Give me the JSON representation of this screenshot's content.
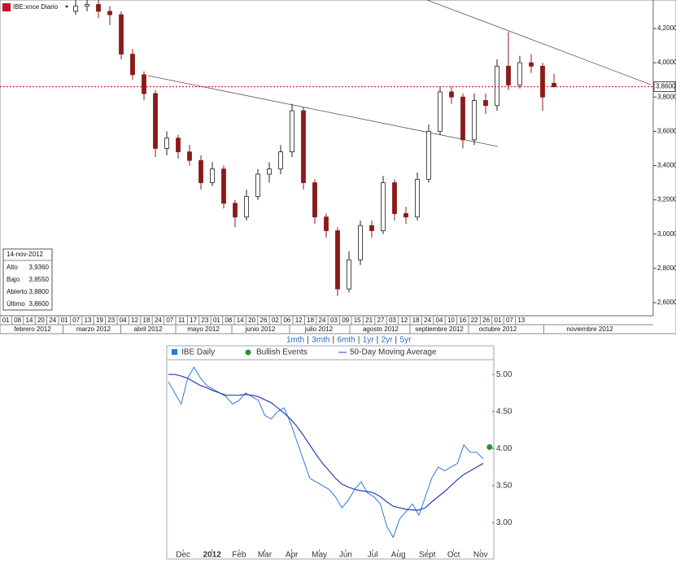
{
  "chart_data": [
    {
      "type": "candlestick",
      "title": "IBE:xnce Diario",
      "ylim": [
        2.524,
        4.366
      ],
      "yticks": [
        {
          "value": 4.2,
          "label": "4,2000"
        },
        {
          "value": 4.0,
          "label": "4,0000"
        },
        {
          "value": 3.8,
          "label": "3,8000"
        },
        {
          "value": 3.6,
          "label": "3,6000"
        },
        {
          "value": 3.4,
          "label": "3,4000"
        },
        {
          "value": 3.2,
          "label": "3,2000"
        },
        {
          "value": 3.0,
          "label": "3,0000"
        },
        {
          "value": 2.8,
          "label": "2,8000"
        },
        {
          "value": 2.6,
          "label": "2,6000"
        }
      ],
      "candles": [
        [
          4.3,
          4.37,
          4.28,
          4.33
        ],
        [
          4.33,
          4.38,
          4.3,
          4.34
        ],
        [
          4.34,
          4.38,
          4.26,
          4.3
        ],
        [
          4.3,
          4.33,
          4.22,
          4.28
        ],
        [
          4.28,
          4.3,
          4.02,
          4.05
        ],
        [
          4.05,
          4.08,
          3.9,
          3.93
        ],
        [
          3.93,
          3.95,
          3.78,
          3.82
        ],
        [
          3.82,
          3.84,
          3.45,
          3.5
        ],
        [
          3.5,
          3.6,
          3.46,
          3.56
        ],
        [
          3.56,
          3.58,
          3.44,
          3.48
        ],
        [
          3.48,
          3.52,
          3.4,
          3.43
        ],
        [
          3.43,
          3.46,
          3.26,
          3.3
        ],
        [
          3.3,
          3.42,
          3.28,
          3.38
        ],
        [
          3.38,
          3.4,
          3.15,
          3.18
        ],
        [
          3.18,
          3.2,
          3.04,
          3.1
        ],
        [
          3.1,
          3.26,
          3.08,
          3.22
        ],
        [
          3.22,
          3.38,
          3.2,
          3.35
        ],
        [
          3.35,
          3.42,
          3.3,
          3.38
        ],
        [
          3.38,
          3.52,
          3.35,
          3.48
        ],
        [
          3.48,
          3.76,
          3.45,
          3.72
        ],
        [
          3.72,
          3.74,
          3.26,
          3.3
        ],
        [
          3.3,
          3.32,
          3.06,
          3.1
        ],
        [
          3.1,
          3.12,
          2.98,
          3.02
        ],
        [
          3.02,
          3.04,
          2.64,
          2.68
        ],
        [
          2.68,
          2.9,
          2.66,
          2.85
        ],
        [
          2.85,
          3.08,
          2.82,
          3.05
        ],
        [
          3.05,
          3.08,
          2.98,
          3.02
        ],
        [
          3.02,
          3.34,
          3.0,
          3.3
        ],
        [
          3.3,
          3.32,
          3.08,
          3.12
        ],
        [
          3.12,
          3.16,
          3.06,
          3.1
        ],
        [
          3.1,
          3.36,
          3.08,
          3.32
        ],
        [
          3.32,
          3.64,
          3.3,
          3.6
        ],
        [
          3.6,
          3.86,
          3.58,
          3.83
        ],
        [
          3.83,
          3.86,
          3.76,
          3.8
        ],
        [
          3.8,
          3.82,
          3.5,
          3.55
        ],
        [
          3.55,
          3.82,
          3.52,
          3.78
        ],
        [
          3.78,
          3.82,
          3.7,
          3.75
        ],
        [
          3.75,
          4.02,
          3.72,
          3.98
        ],
        [
          3.98,
          4.18,
          3.84,
          3.87
        ],
        [
          3.87,
          4.04,
          3.85,
          4.0
        ],
        [
          4.0,
          4.05,
          3.94,
          3.98
        ],
        [
          3.98,
          4.0,
          3.72,
          3.8
        ],
        [
          3.88,
          3.936,
          3.855,
          3.86
        ]
      ],
      "up_color": "#1f1f1f",
      "down_color": "#8b1a1a",
      "last_price": {
        "value": 3.86,
        "label": "3,8600"
      },
      "info": {
        "date": "14-nov-2012",
        "rows": [
          [
            "Alto",
            "3,9360"
          ],
          [
            "Bajo",
            "3,8550"
          ],
          [
            "Abierto",
            "3,8800"
          ],
          [
            "Último",
            "3,8600"
          ]
        ]
      },
      "day_labels": [
        "01",
        "08",
        "14",
        "20",
        "24",
        "01",
        "07",
        "13",
        "19",
        "23",
        "04",
        "12",
        "18",
        "24",
        "07",
        "11",
        "17",
        "23",
        "01",
        "08",
        "14",
        "20",
        "26",
        "02",
        "06",
        "12",
        "18",
        "24",
        "03",
        "09",
        "15",
        "21",
        "27",
        "03",
        "12",
        "18",
        "24",
        "04",
        "10",
        "16",
        "22",
        "26",
        "01",
        "07",
        "13"
      ],
      "month_labels": [
        "febrero 2012",
        "marzo 2012",
        "abril 2012",
        "mayo 2012",
        "junio 2012",
        "julio 2012",
        "agosto 2012",
        "septiembre 2012",
        "octubre 2012",
        "noviembre 2012"
      ]
    },
    {
      "type": "line",
      "range_links": [
        "1mth",
        "3mth",
        "6mth",
        "1yr",
        "2yr",
        "5yr"
      ],
      "x": [
        0,
        1,
        2,
        3,
        4,
        5,
        6,
        7,
        8,
        9,
        10,
        11,
        12,
        13,
        14,
        15,
        16,
        17,
        18,
        19,
        20,
        21,
        22,
        23,
        24,
        25,
        26,
        27,
        28,
        29,
        30,
        31,
        32,
        33,
        34,
        35,
        36,
        37,
        38,
        39,
        40,
        41,
        42,
        43,
        44,
        45,
        46,
        47,
        48,
        49
      ],
      "xlim": [
        0,
        50.4
      ],
      "xticks": [
        {
          "value": 2.3,
          "label": "Dec"
        },
        {
          "value": 6.8,
          "label": "2012"
        },
        {
          "value": 11,
          "label": "Feb"
        },
        {
          "value": 15,
          "label": "Mar"
        },
        {
          "value": 19.2,
          "label": "Apr"
        },
        {
          "value": 23.5,
          "label": "May"
        },
        {
          "value": 27.6,
          "label": "Jun"
        },
        {
          "value": 31.8,
          "label": "Jul"
        },
        {
          "value": 35.8,
          "label": "Aug"
        },
        {
          "value": 40.3,
          "label": "Sept"
        },
        {
          "value": 44.4,
          "label": "Oct"
        },
        {
          "value": 48.6,
          "label": "Nov"
        }
      ],
      "ylim": [
        2.64,
        5.2
      ],
      "yticks": [
        {
          "value": 5.0,
          "label": "5.00"
        },
        {
          "value": 4.5,
          "label": "4.50"
        },
        {
          "value": 4.0,
          "label": "4.00"
        },
        {
          "value": 3.5,
          "label": "3.50"
        },
        {
          "value": 3.0,
          "label": "3.00"
        }
      ],
      "series": [
        {
          "name": "IBE Daily",
          "color": "#2b7bd6",
          "values": [
            4.9,
            4.75,
            4.6,
            4.95,
            5.1,
            4.95,
            4.85,
            4.8,
            4.75,
            4.7,
            4.6,
            4.65,
            4.75,
            4.7,
            4.65,
            4.45,
            4.4,
            4.5,
            4.55,
            4.35,
            4.1,
            3.85,
            3.6,
            3.55,
            3.5,
            3.45,
            3.35,
            3.2,
            3.3,
            3.45,
            3.55,
            3.4,
            3.35,
            3.25,
            2.95,
            2.8,
            3.05,
            3.15,
            3.25,
            3.1,
            3.35,
            3.6,
            3.75,
            3.7,
            3.75,
            3.8,
            4.05,
            3.95,
            3.95,
            3.86
          ]
        },
        {
          "name": "50-Day Moving Average",
          "color": "#2a3fb0",
          "values": [
            5.0,
            5.0,
            4.98,
            4.95,
            4.9,
            4.85,
            4.82,
            4.78,
            4.75,
            4.72,
            4.72,
            4.72,
            4.73,
            4.72,
            4.7,
            4.66,
            4.62,
            4.55,
            4.48,
            4.4,
            4.3,
            4.18,
            4.05,
            3.92,
            3.8,
            3.7,
            3.6,
            3.52,
            3.48,
            3.45,
            3.43,
            3.42,
            3.4,
            3.35,
            3.28,
            3.22,
            3.2,
            3.18,
            3.17,
            3.17,
            3.2,
            3.28,
            3.35,
            3.42,
            3.5,
            3.58,
            3.65,
            3.7,
            3.75,
            3.8
          ]
        }
      ],
      "events": {
        "name": "Bullish Events",
        "color": "#1e9a2e",
        "x": [
          50
        ],
        "values": [
          4.02
        ]
      }
    }
  ]
}
